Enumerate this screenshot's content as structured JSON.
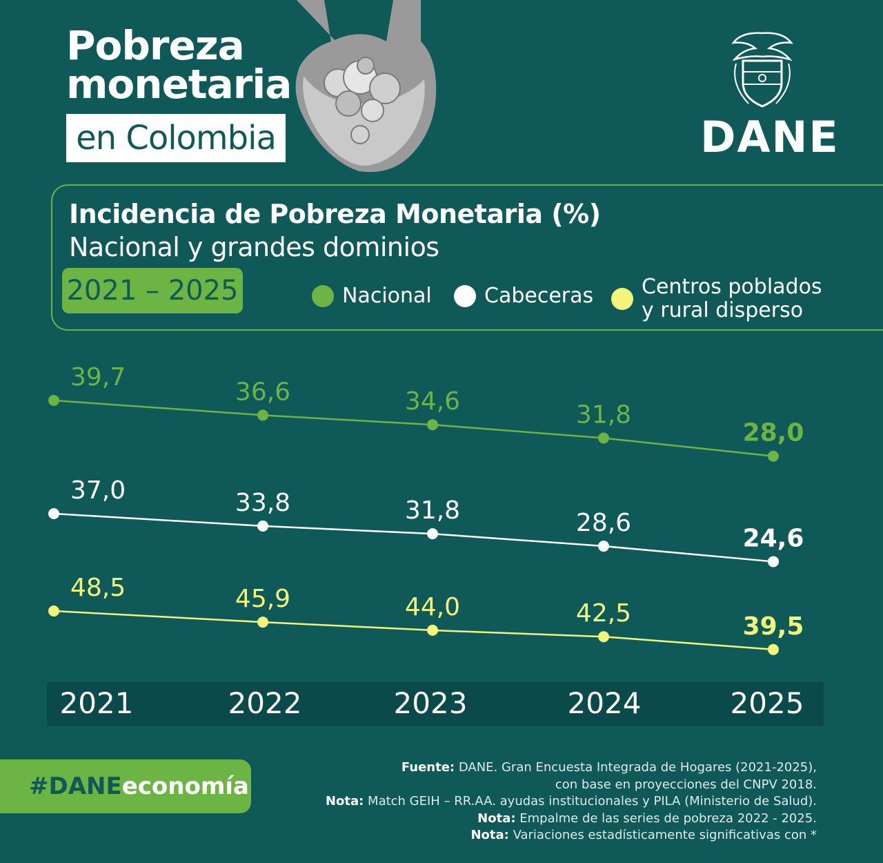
{
  "header": {
    "title_line1": "Pobreza",
    "title_line2": "monetaria",
    "title_sub": "en Colombia",
    "logo_text": "DANE"
  },
  "panel": {
    "period": "2021 – 2025"
  },
  "colors": {
    "background": "#0f5a59",
    "accent_green": "#6cb444",
    "white": "#ffffff",
    "yellow": "#f3f57a"
  },
  "chart_data": {
    "type": "line",
    "title": "Incidencia de Pobreza Monetaria (%)",
    "subtitle": "Nacional y grandes dominios",
    "categories": [
      "2021",
      "2022",
      "2023",
      "2024",
      "2025"
    ],
    "series": [
      {
        "name": "Nacional",
        "color": "#6cb444",
        "values": [
          39.7,
          36.6,
          34.6,
          31.8,
          28.0
        ],
        "labels": [
          "39,7",
          "36,6",
          "34,6",
          "31,8",
          "28,0"
        ]
      },
      {
        "name": "Cabeceras",
        "color": "#ffffff",
        "values": [
          37.0,
          33.8,
          31.8,
          28.6,
          24.6
        ],
        "labels": [
          "37,0",
          "33,8",
          "31,8",
          "28,6",
          "24,6"
        ]
      },
      {
        "name": "Centros poblados\ny rural disperso",
        "color": "#f3f57a",
        "values": [
          48.5,
          45.9,
          44.0,
          42.5,
          39.5
        ],
        "labels": [
          "48,5",
          "45,9",
          "44,0",
          "42,5",
          "39,5"
        ]
      }
    ],
    "legend_position": "top-right",
    "grid": false
  },
  "footer": {
    "hashtag_prefix": "#DANE",
    "hashtag_suffix": "economía",
    "fuente_label": "Fuente:",
    "fuente_text": " DANE. Gran Encuesta Integrada de Hogares (2021-2025),",
    "fuente_text2": "con base en proyecciones del CNPV 2018.",
    "nota1_label": "Nota:",
    "nota1_text": " Match GEIH – RR.AA. ayudas institucionales y PILA (Ministerio de Salud).",
    "nota2_label": "Nota:",
    "nota2_text": " Empalme de las series de pobreza 2022 - 2025.",
    "nota3_label": "Nota:",
    "nota3_text": " Variaciones estadísticamente significativas con *"
  }
}
